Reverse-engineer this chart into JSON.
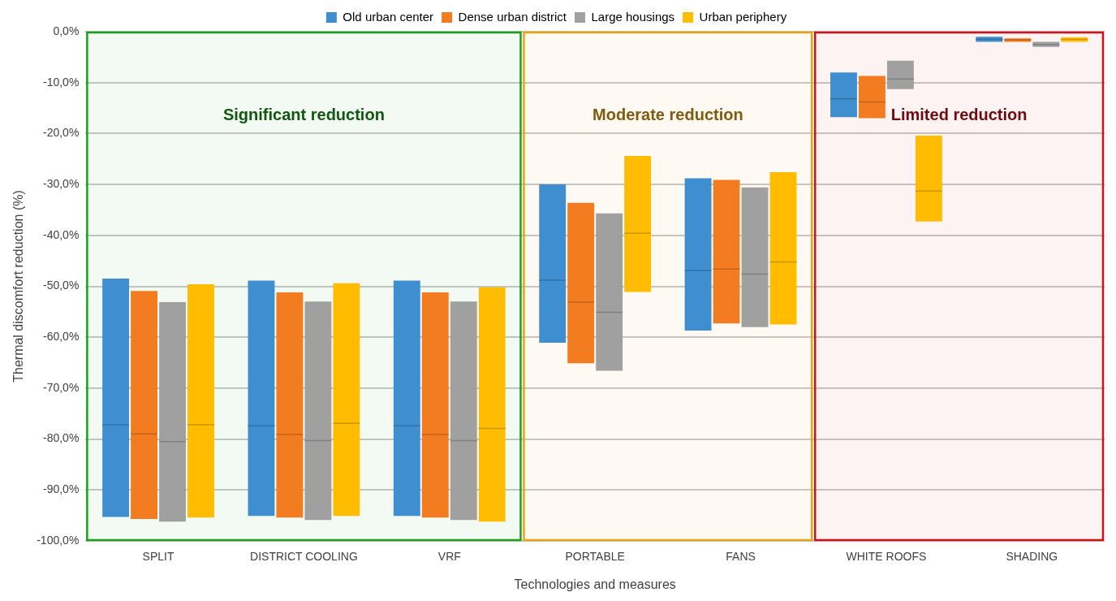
{
  "chart_data": {
    "type": "box",
    "xlabel": "Technologies and measures",
    "ylabel": "Thermal discomfort reduction (%)",
    "categories": [
      "SPLIT",
      "DISTRICT COOLING",
      "VRF",
      "PORTABLE",
      "FANS",
      "WHITE ROOFS",
      "SHADING"
    ],
    "series": [
      {
        "name": "Old urban center",
        "color": "#3f8fd0",
        "boxes": [
          {
            "low": -95.3,
            "q1": -95.3,
            "median": -77.2,
            "q3": -48.5,
            "high": -48.5
          },
          {
            "low": -95.1,
            "q1": -95.1,
            "median": -77.4,
            "q3": -48.9,
            "high": -48.9
          },
          {
            "low": -95.1,
            "q1": -95.1,
            "median": -77.4,
            "q3": -48.9,
            "high": -48.9
          },
          {
            "low": -61.1,
            "q1": -61.1,
            "median": -48.8,
            "q3": -30.0,
            "high": -30.0
          },
          {
            "low": -58.7,
            "q1": -58.7,
            "median": -46.9,
            "q3": -28.8,
            "high": -28.8
          },
          {
            "low": -16.8,
            "q1": -16.8,
            "median": -13.2,
            "q3": -8.0,
            "high": -8.0
          },
          {
            "low": -2.0,
            "q1": -2.0,
            "median": -1.5,
            "q3": -1.0,
            "high": -1.0
          }
        ]
      },
      {
        "name": "Dense urban district",
        "color": "#f47c20",
        "boxes": [
          {
            "low": -95.7,
            "q1": -95.7,
            "median": -79.0,
            "q3": -50.9,
            "high": -50.9
          },
          {
            "low": -95.4,
            "q1": -95.4,
            "median": -79.1,
            "q3": -51.2,
            "high": -51.2
          },
          {
            "low": -95.4,
            "q1": -95.4,
            "median": -79.1,
            "q3": -51.2,
            "high": -51.2
          },
          {
            "low": -65.1,
            "q1": -65.1,
            "median": -53.1,
            "q3": -33.6,
            "high": -33.6
          },
          {
            "low": -57.3,
            "q1": -57.3,
            "median": -46.6,
            "q3": -29.1,
            "high": -29.1
          },
          {
            "low": -17.0,
            "q1": -17.0,
            "median": -13.8,
            "q3": -8.7,
            "high": -8.7
          },
          {
            "low": -2.0,
            "q1": -2.0,
            "median": -1.6,
            "q3": -1.3,
            "high": -1.3
          }
        ]
      },
      {
        "name": "Large housings",
        "color": "#a0a0a0",
        "boxes": [
          {
            "low": -96.2,
            "q1": -96.2,
            "median": -80.5,
            "q3": -53.1,
            "high": -53.1
          },
          {
            "low": -95.9,
            "q1": -95.9,
            "median": -80.3,
            "q3": -53.0,
            "high": -53.0
          },
          {
            "low": -95.9,
            "q1": -95.9,
            "median": -80.3,
            "q3": -53.0,
            "high": -53.0
          },
          {
            "low": -66.6,
            "q1": -66.6,
            "median": -55.1,
            "q3": -35.7,
            "high": -35.7
          },
          {
            "low": -58.0,
            "q1": -58.0,
            "median": -47.6,
            "q3": -30.6,
            "high": -30.6
          },
          {
            "low": -11.3,
            "q1": -11.3,
            "median": -9.3,
            "q3": -5.7,
            "high": -5.7
          },
          {
            "low": -3.0,
            "q1": -3.0,
            "median": -2.5,
            "q3": -2.0,
            "high": -2.0
          }
        ]
      },
      {
        "name": "Urban periphery",
        "color": "#ffbc00",
        "boxes": [
          {
            "low": -95.4,
            "q1": -95.4,
            "median": -77.2,
            "q3": -49.6,
            "high": -49.6
          },
          {
            "low": -95.1,
            "q1": -95.1,
            "median": -76.9,
            "q3": -49.4,
            "high": -49.4
          },
          {
            "low": -96.2,
            "q1": -96.2,
            "median": -77.9,
            "q3": -50.2,
            "high": -50.2
          },
          {
            "low": -51.1,
            "q1": -51.1,
            "median": -39.6,
            "q3": -24.4,
            "high": -24.4
          },
          {
            "low": -57.5,
            "q1": -57.5,
            "median": -45.2,
            "q3": -27.6,
            "high": -27.6
          },
          {
            "low": -37.3,
            "q1": -37.3,
            "median": -31.3,
            "q3": -20.4,
            "high": -20.4
          },
          {
            "low": -2.0,
            "q1": -2.0,
            "median": -1.5,
            "q3": -1.1,
            "high": -1.1
          }
        ]
      }
    ],
    "ylim": [
      -100,
      0
    ],
    "yticks": [
      {
        "value": -100,
        "label": "-100,0%"
      },
      {
        "value": -90,
        "label": "-90,0%"
      },
      {
        "value": -80,
        "label": "-80,0%"
      },
      {
        "value": -70,
        "label": "-70,0%"
      },
      {
        "value": -60,
        "label": "-60,0%"
      },
      {
        "value": -50,
        "label": "-50,0%"
      },
      {
        "value": -40,
        "label": "-40,0%"
      },
      {
        "value": -30,
        "label": "-30,0%"
      },
      {
        "value": -20,
        "label": "-20,0%"
      },
      {
        "value": -10,
        "label": "-10,0%"
      },
      {
        "value": 0,
        "label": "0,0%"
      }
    ],
    "bands": [
      {
        "axis": "x",
        "from": "SPLIT",
        "to": "VRF",
        "label": "Significant reduction",
        "color": "#1aa01a"
      },
      {
        "axis": "x",
        "from": "PORTABLE",
        "to": "FANS",
        "label": "Moderate reduction",
        "color": "#e8a317"
      },
      {
        "axis": "x",
        "from": "WHITE ROOFS",
        "to": "SHADING",
        "label": "Limited reduction",
        "color": "#d0101a"
      }
    ],
    "grid": "y",
    "legend": "top"
  }
}
